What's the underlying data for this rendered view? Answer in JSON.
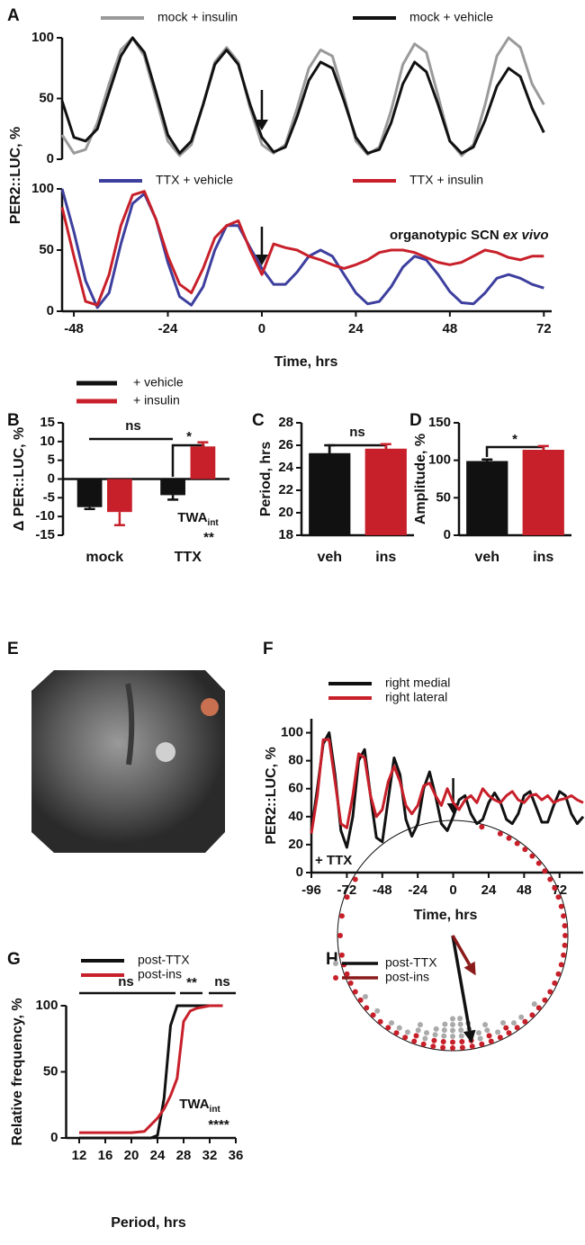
{
  "chart_data": [
    {
      "type": "line",
      "panel": "A",
      "y_label": "PER2::LUC, %",
      "arrow_x": 0,
      "x": [
        -51,
        -48,
        -45,
        -42,
        -39,
        -36,
        -33,
        -30,
        -27,
        -24,
        -21,
        -18,
        -15,
        -12,
        -9,
        -6,
        -3,
        0,
        3,
        6,
        9,
        12,
        15,
        18,
        21,
        24,
        27,
        30,
        33,
        36,
        39,
        42,
        45,
        48,
        51,
        54,
        57,
        60,
        63,
        66,
        69,
        72
      ],
      "xlim": [
        -51,
        74
      ],
      "ylim": [
        0,
        100
      ],
      "yticks": [
        0,
        50,
        100
      ],
      "series": [
        {
          "name": "mock + insulin",
          "color": "#9a9a9a",
          "values": [
            20,
            5,
            8,
            30,
            62,
            90,
            100,
            85,
            50,
            15,
            3,
            12,
            45,
            80,
            92,
            80,
            42,
            12,
            5,
            12,
            42,
            75,
            90,
            85,
            52,
            15,
            4,
            10,
            40,
            78,
            95,
            88,
            52,
            15,
            3,
            12,
            45,
            85,
            100,
            92,
            62,
            45
          ]
        },
        {
          "name": "mock + vehicle",
          "color": "#111111",
          "values": [
            48,
            18,
            15,
            25,
            55,
            85,
            100,
            88,
            55,
            20,
            5,
            15,
            45,
            78,
            90,
            78,
            45,
            18,
            6,
            10,
            35,
            65,
            80,
            75,
            48,
            18,
            5,
            8,
            30,
            62,
            80,
            72,
            45,
            15,
            5,
            10,
            32,
            60,
            75,
            68,
            42,
            22
          ]
        }
      ]
    },
    {
      "type": "line",
      "x_label": "Time, hrs",
      "arrow_x": 0,
      "annotations": [
        {
          "text": "organotypic SCN",
          "italic": "ex vivo"
        }
      ],
      "x": [
        -51,
        -48,
        -45,
        -42,
        -39,
        -36,
        -33,
        -30,
        -27,
        -24,
        -21,
        -18,
        -15,
        -12,
        -9,
        -6,
        -3,
        0,
        3,
        6,
        9,
        12,
        15,
        18,
        21,
        24,
        27,
        30,
        33,
        36,
        39,
        42,
        45,
        48,
        51,
        54,
        57,
        60,
        63,
        66,
        69,
        72
      ],
      "xlim": [
        -51,
        74
      ],
      "ylim": [
        0,
        100
      ],
      "yticks": [
        0,
        50,
        100
      ],
      "xticks": [
        -48,
        -24,
        0,
        24,
        48,
        72
      ],
      "series": [
        {
          "name": "TTX + vehicle",
          "color": "#3d3f9e",
          "values": [
            100,
            65,
            25,
            3,
            15,
            55,
            88,
            96,
            75,
            40,
            12,
            5,
            20,
            50,
            70,
            70,
            52,
            35,
            22,
            22,
            32,
            45,
            50,
            45,
            30,
            15,
            6,
            8,
            20,
            36,
            45,
            42,
            30,
            16,
            7,
            6,
            15,
            27,
            30,
            27,
            22,
            19
          ]
        },
        {
          "name": "TTX + insulin",
          "color": "#c8202a",
          "values": [
            85,
            45,
            8,
            5,
            30,
            70,
            95,
            98,
            75,
            45,
            22,
            15,
            35,
            60,
            70,
            74,
            50,
            30,
            55,
            52,
            50,
            45,
            42,
            38,
            35,
            38,
            42,
            48,
            50,
            50,
            48,
            44,
            40,
            38,
            40,
            45,
            50,
            48,
            44,
            42,
            45,
            45
          ]
        }
      ]
    },
    {
      "type": "bar",
      "panel": "B",
      "y_label": "Δ PER::LUC, %",
      "categories": [
        "mock",
        "TTX"
      ],
      "ylim": [
        -15,
        15
      ],
      "yticks": [
        -15,
        -10,
        -5,
        0,
        5,
        10,
        15
      ],
      "annotations": [
        "ns",
        "*",
        {
          "text": "TWA",
          "sub": "int"
        },
        "**"
      ],
      "series": [
        {
          "name": "+ vehicle",
          "color": "#111111",
          "values": [
            -7.5,
            -4.3
          ],
          "errors": [
            0.5,
            1.2
          ]
        },
        {
          "name": "+ insulin",
          "color": "#c8202a",
          "values": [
            -8.8,
            8.7
          ],
          "errors": [
            3.5,
            1.1
          ]
        }
      ]
    },
    {
      "type": "bar",
      "panel": "C",
      "y_label": "Period, hrs",
      "categories": [
        "veh",
        "ins"
      ],
      "values": [
        25.3,
        25.7
      ],
      "errors": [
        0.7,
        0.4
      ],
      "colors": [
        "#111111",
        "#c8202a"
      ],
      "ylim": [
        18,
        28
      ],
      "yticks": [
        18,
        20,
        22,
        24,
        26,
        28
      ],
      "annotations": [
        "ns"
      ]
    },
    {
      "type": "bar",
      "panel": "D",
      "y_label": "Amplitude, %",
      "categories": [
        "veh",
        "ins"
      ],
      "values": [
        99,
        114
      ],
      "errors": [
        2,
        5
      ],
      "colors": [
        "#111111",
        "#c8202a"
      ],
      "ylim": [
        0,
        150
      ],
      "yticks": [
        0,
        50,
        100,
        150
      ],
      "annotations": [
        "*"
      ]
    },
    {
      "type": "image",
      "panel": "E"
    },
    {
      "type": "line",
      "panel": "F",
      "y_label": "PER2::LUC, %",
      "x_label": "Time, hrs",
      "arrow_x": 0,
      "annotations": [
        "+ TTX"
      ],
      "x": [
        -96,
        -92,
        -88,
        -84,
        -80,
        -76,
        -72,
        -68,
        -64,
        -60,
        -56,
        -52,
        -48,
        -44,
        -40,
        -36,
        -32,
        -28,
        -24,
        -20,
        -16,
        -12,
        -8,
        -4,
        0,
        4,
        8,
        12,
        16,
        20,
        24,
        28,
        32,
        36,
        40,
        44,
        48,
        52,
        56,
        60,
        64,
        68,
        72,
        76,
        80,
        84,
        88
      ],
      "xlim": [
        -96,
        88
      ],
      "ylim": [
        0,
        110
      ],
      "yticks": [
        0,
        20,
        40,
        60,
        80,
        100
      ],
      "xticks": [
        -96,
        -72,
        -48,
        -24,
        0,
        24,
        48,
        72
      ],
      "series": [
        {
          "name": "right medial",
          "color": "#111111",
          "values": [
            30,
            60,
            92,
            100,
            70,
            30,
            18,
            40,
            80,
            88,
            55,
            25,
            22,
            52,
            82,
            70,
            38,
            26,
            35,
            60,
            72,
            55,
            35,
            30,
            40,
            52,
            55,
            42,
            35,
            38,
            50,
            57,
            50,
            38,
            35,
            42,
            55,
            58,
            47,
            36,
            36,
            48,
            58,
            55,
            42,
            35,
            40
          ]
        },
        {
          "name": "right lateral",
          "color": "#c8202a",
          "values": [
            28,
            55,
            95,
            95,
            65,
            35,
            32,
            55,
            85,
            82,
            55,
            40,
            45,
            65,
            76,
            65,
            48,
            42,
            48,
            62,
            64,
            55,
            48,
            60,
            50,
            45,
            52,
            55,
            50,
            60,
            55,
            52,
            50,
            55,
            58,
            52,
            50,
            55,
            56,
            52,
            55,
            50,
            52,
            53,
            55,
            52,
            50
          ]
        }
      ]
    },
    {
      "type": "line",
      "panel": "G",
      "y_label": "Relative frequency, %",
      "x_label": "Period, hrs",
      "annotations": [
        "ns",
        "**",
        "ns",
        {
          "text": "TWA",
          "sub": "int"
        },
        "****"
      ],
      "x": [
        12,
        14,
        16,
        18,
        20,
        22,
        23,
        24,
        25,
        26,
        27,
        28,
        29,
        30,
        32,
        34
      ],
      "xlim": [
        10,
        36
      ],
      "ylim": [
        0,
        100
      ],
      "yticks": [
        0,
        50,
        100
      ],
      "xticks": [
        12,
        16,
        20,
        24,
        28,
        32,
        36
      ],
      "series": [
        {
          "name": "post-TTX",
          "color": "#111111",
          "values": [
            0,
            0,
            0,
            0,
            0,
            0,
            0,
            2,
            30,
            85,
            100,
            100,
            100,
            100,
            100,
            100
          ]
        },
        {
          "name": "post-ins",
          "color": "#c8202a",
          "values": [
            4,
            4,
            4,
            4,
            4,
            5,
            10,
            15,
            22,
            32,
            45,
            88,
            96,
            98,
            100,
            100
          ]
        }
      ]
    },
    {
      "type": "polar",
      "panel": "H",
      "series": [
        {
          "name": "post-TTX",
          "color": "#aaaaaa",
          "arrow_color": "#111111",
          "mean_angle": 170,
          "mean_length": 0.95,
          "phases": [
            150,
            155,
            160,
            160,
            165,
            165,
            170,
            170,
            170,
            175,
            175,
            175,
            175,
            180,
            180,
            180,
            180,
            185,
            185,
            185,
            190,
            190,
            195,
            195,
            200,
            200,
            205,
            210,
            215,
            130,
            140,
            145,
            225,
            235
          ]
        },
        {
          "name": "post-ins",
          "color": "#c8202a",
          "arrow_color": "#8b1a1a",
          "mean_angle": 150,
          "mean_length": 0.4,
          "phases": [
            15,
            25,
            30,
            35,
            40,
            45,
            50,
            55,
            60,
            65,
            70,
            75,
            80,
            85,
            90,
            95,
            100,
            105,
            110,
            115,
            120,
            125,
            130,
            135,
            140,
            145,
            150,
            150,
            155,
            160,
            160,
            165,
            170,
            170,
            175,
            175,
            180,
            180,
            185,
            185,
            190,
            190,
            195,
            200,
            200,
            205,
            210,
            215,
            220,
            225,
            230,
            235,
            240,
            245,
            250,
            255,
            260,
            270,
            280,
            290,
            300
          ]
        }
      ]
    }
  ]
}
